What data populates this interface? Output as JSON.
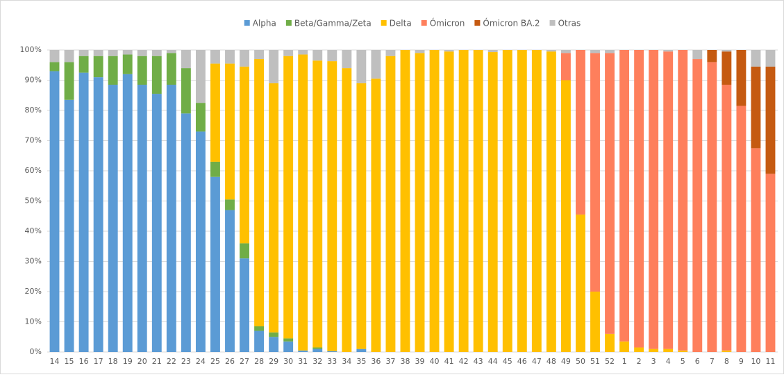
{
  "chart_data": {
    "type": "stacked_bar",
    "categories": [
      "14",
      "15",
      "16",
      "17",
      "18",
      "19",
      "20",
      "21",
      "22",
      "23",
      "24",
      "25",
      "26",
      "27",
      "28",
      "29",
      "30",
      "31",
      "32",
      "33",
      "34",
      "35",
      "36",
      "37",
      "38",
      "39",
      "40",
      "41",
      "42",
      "43",
      "44",
      "45",
      "46",
      "47",
      "48",
      "49",
      "50",
      "51",
      "52",
      "1",
      "2",
      "3",
      "4",
      "5",
      "6",
      "7",
      "8",
      "9",
      "10",
      "11"
    ],
    "series": [
      {
        "name": "Alpha",
        "color": "#5b9bd5",
        "values": [
          93,
          83.5,
          92.5,
          91,
          88.5,
          92,
          88.5,
          85.5,
          88.5,
          79,
          73,
          58,
          47,
          31,
          7,
          5,
          3.5,
          0.5,
          1,
          0.3,
          0,
          1,
          0,
          0,
          0,
          0,
          0,
          0,
          0,
          0,
          0,
          0,
          0,
          0,
          0,
          0,
          0,
          0,
          0,
          0,
          0,
          0,
          0,
          0,
          0,
          0,
          0,
          0,
          0,
          0
        ]
      },
      {
        "name": "Beta/Gamma/Zeta",
        "color": "#70ad47",
        "values": [
          3,
          12.5,
          5.5,
          7,
          9.5,
          6.5,
          9.5,
          12.5,
          10.5,
          15,
          9.5,
          5,
          3.5,
          5,
          1.5,
          1.5,
          1,
          0,
          0.5,
          0,
          0,
          0,
          0,
          0,
          0,
          0,
          0,
          0,
          0,
          0,
          0,
          0,
          0,
          0,
          0,
          0,
          0,
          0,
          0,
          0,
          0,
          0,
          0,
          0,
          0,
          0,
          0,
          0,
          0,
          0
        ]
      },
      {
        "name": "Delta",
        "color": "#ffc000",
        "values": [
          0,
          0,
          0,
          0,
          0,
          0,
          0,
          0,
          0,
          0,
          0,
          32.5,
          45,
          58.5,
          88.5,
          82.5,
          93.5,
          98,
          95,
          96,
          94,
          88,
          90.5,
          98,
          100,
          99,
          100,
          99.5,
          100,
          100,
          99.3,
          100,
          100,
          100,
          99.5,
          90,
          45.5,
          20,
          6,
          3.5,
          1.5,
          1,
          1,
          0.5,
          0,
          0,
          0.5,
          0,
          0,
          0
        ]
      },
      {
        "name": "Ómicron",
        "color": "#fe7f5c",
        "values": [
          0,
          0,
          0,
          0,
          0,
          0,
          0,
          0,
          0,
          0,
          0,
          0,
          0,
          0,
          0,
          0,
          0,
          0,
          0,
          0,
          0,
          0,
          0,
          0,
          0,
          0,
          0,
          0,
          0,
          0,
          0,
          0,
          0,
          0,
          0,
          9,
          54.5,
          79,
          93,
          96.5,
          98.5,
          99,
          98.5,
          99.5,
          97,
          96,
          88,
          81.5,
          67.5,
          59
        ]
      },
      {
        "name": "Ómicron BA.2",
        "color": "#c55a11",
        "values": [
          0,
          0,
          0,
          0,
          0,
          0,
          0,
          0,
          0,
          0,
          0,
          0,
          0,
          0,
          0,
          0,
          0,
          0,
          0,
          0,
          0,
          0,
          0,
          0,
          0,
          0,
          0,
          0,
          0,
          0,
          0,
          0,
          0,
          0,
          0,
          0,
          0,
          0,
          0,
          0,
          0,
          0,
          0,
          0,
          0,
          4,
          11,
          18.5,
          27,
          35.5
        ]
      },
      {
        "name": "Otras",
        "color": "#bfbfbf",
        "values": [
          4,
          4,
          2,
          2,
          2,
          1.5,
          2,
          2,
          1,
          6,
          17.5,
          4.5,
          4.5,
          5.5,
          3,
          11,
          2,
          1.5,
          3.5,
          3.7,
          6,
          11,
          9.5,
          2,
          0,
          1,
          0,
          0.5,
          0,
          0,
          0.7,
          0,
          0,
          0,
          0.5,
          1,
          0,
          1,
          1,
          0,
          0,
          0,
          0.5,
          0,
          3,
          0,
          0.5,
          0,
          5.5,
          5.5
        ]
      }
    ],
    "ylim": [
      0,
      100
    ],
    "yticks": [
      {
        "value": 0,
        "label": "0%"
      },
      {
        "value": 10,
        "label": "10%"
      },
      {
        "value": 20,
        "label": "20%"
      },
      {
        "value": 30,
        "label": "30%"
      },
      {
        "value": 40,
        "label": "40%"
      },
      {
        "value": 50,
        "label": "50%"
      },
      {
        "value": 60,
        "label": "60%"
      },
      {
        "value": 70,
        "label": "70%"
      },
      {
        "value": 80,
        "label": "80%"
      },
      {
        "value": 90,
        "label": "90%"
      },
      {
        "value": 100,
        "label": "100%"
      }
    ],
    "grid": true,
    "legend": "top"
  }
}
